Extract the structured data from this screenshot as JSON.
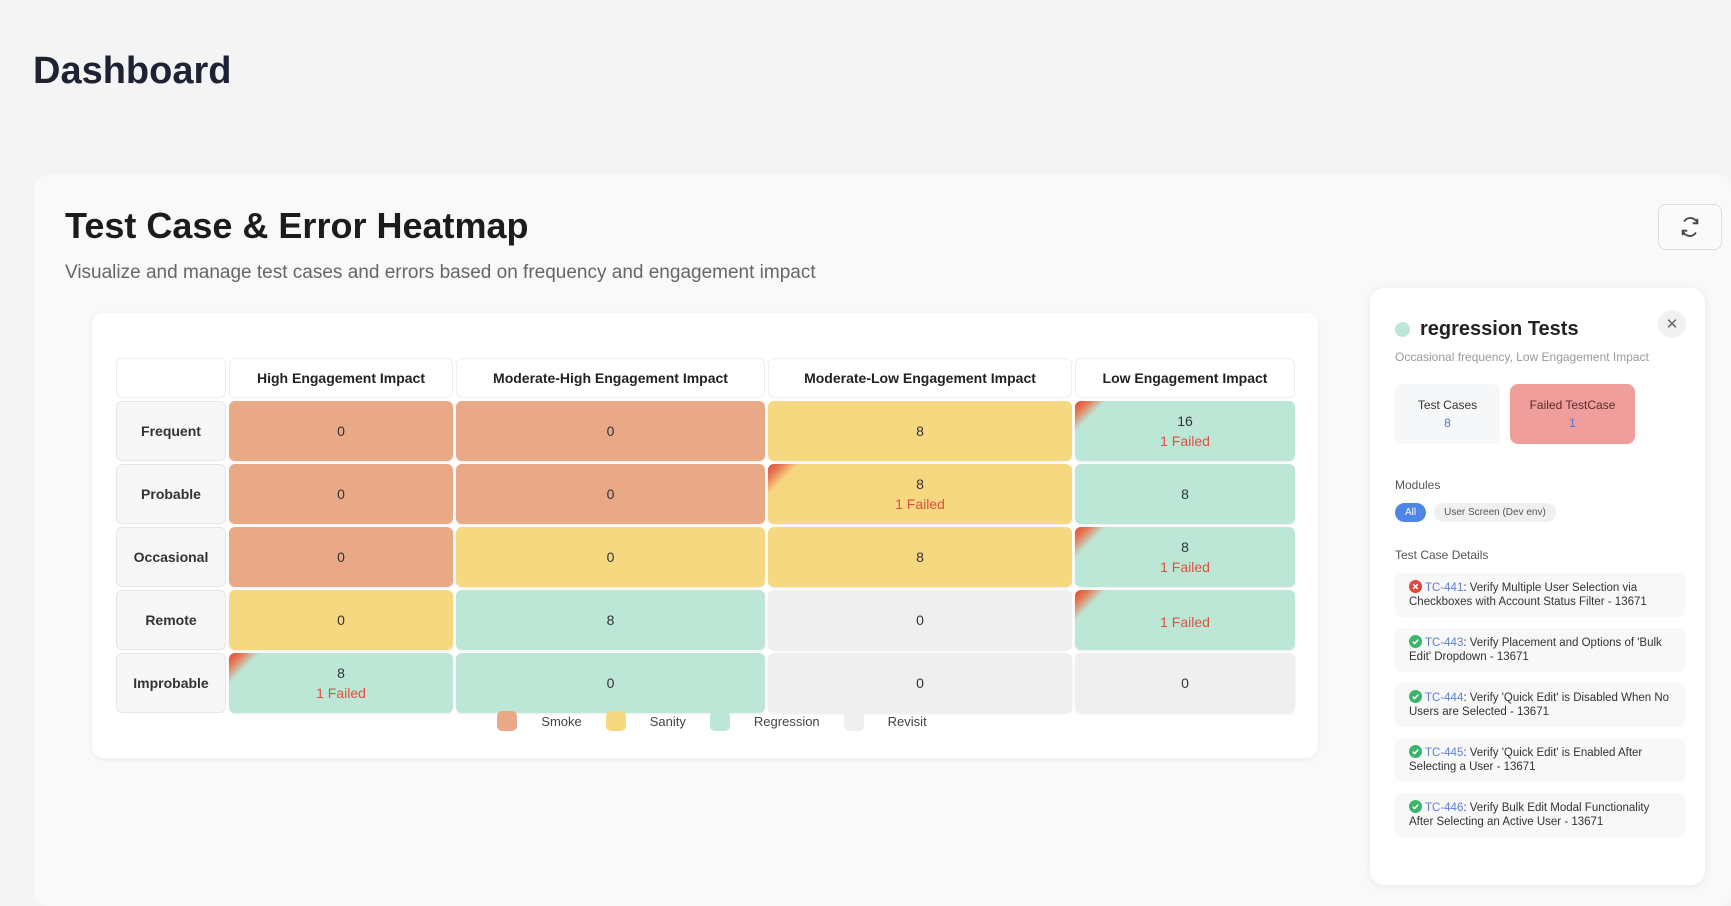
{
  "header": {
    "title": "Dashboard"
  },
  "heatmap": {
    "title": "Test Case & Error Heatmap",
    "subtitle": "Visualize and manage test cases and errors based on frequency and engagement impact",
    "columns": [
      "High Engagement Impact",
      "Moderate-High Engagement Impact",
      "Moderate-Low Engagement Impact",
      "Low Engagement Impact"
    ],
    "rows": [
      {
        "label": "Frequent",
        "cells": [
          {
            "count": 0,
            "color": "#e9a986"
          },
          {
            "count": 0,
            "color": "#e9a986"
          },
          {
            "count": 8,
            "color": "#f6d880"
          },
          {
            "count": 16,
            "failed": "1 Failed",
            "color": "#bce6d6"
          }
        ]
      },
      {
        "label": "Probable",
        "cells": [
          {
            "count": 0,
            "color": "#e9a986"
          },
          {
            "count": 0,
            "color": "#e9a986"
          },
          {
            "count": 8,
            "failed": "1 Failed",
            "color": "#f6d880"
          },
          {
            "count": 8,
            "color": "#bce6d6"
          }
        ]
      },
      {
        "label": "Occasional",
        "cells": [
          {
            "count": 0,
            "color": "#e9a986"
          },
          {
            "count": 0,
            "color": "#f6d880"
          },
          {
            "count": 8,
            "color": "#f6d880"
          },
          {
            "count": 8,
            "failed": "1 Failed",
            "color": "#bce6d6"
          }
        ]
      },
      {
        "label": "Remote",
        "cells": [
          {
            "count": 0,
            "color": "#f6d880"
          },
          {
            "count": 8,
            "color": "#bce6d6"
          },
          {
            "count": 0,
            "color": "#efefef"
          },
          {
            "failed": "1 Failed",
            "color": "#bce6d6"
          }
        ]
      },
      {
        "label": "Improbable",
        "cells": [
          {
            "count": 8,
            "failed": "1 Failed",
            "color": "#bce6d6"
          },
          {
            "count": 0,
            "color": "#bce6d6"
          },
          {
            "count": 0,
            "color": "#efefef"
          },
          {
            "count": 0,
            "color": "#efefef"
          }
        ]
      }
    ],
    "legend": [
      {
        "label": "Smoke",
        "color": "#e9a986"
      },
      {
        "label": "Sanity",
        "color": "#f6d880"
      },
      {
        "label": "Regression",
        "color": "#bce6d6"
      },
      {
        "label": "Revisit",
        "color": "#efefef"
      }
    ]
  },
  "panel": {
    "title": "regression Tests",
    "subtitle": "Occasional frequency, Low Engagement Impact",
    "stats": [
      {
        "label": "Test Cases",
        "value": 8
      },
      {
        "label": "Failed TestCase",
        "value": 1
      }
    ],
    "modules_label": "Modules",
    "modules": [
      "All",
      "User Screen (Dev env)"
    ],
    "details_label": "Test Case Details",
    "items": [
      {
        "id": "TC-441",
        "text": ": Verify Multiple User Selection via Checkboxes with Account Status Filter - 13671",
        "passed": false
      },
      {
        "id": "TC-443",
        "text": ": Verify Placement and Options of 'Bulk Edit' Dropdown - 13671",
        "passed": true
      },
      {
        "id": "TC-444",
        "text": ": Verify 'Quick Edit' is Disabled When No Users are Selected - 13671",
        "passed": true
      },
      {
        "id": "TC-445",
        "text": ": Verify 'Quick Edit' is Enabled After Selecting a User - 13671",
        "passed": true
      },
      {
        "id": "TC-446",
        "text": ": Verify Bulk Edit Modal Functionality After Selecting an Active User - 13671",
        "passed": true
      }
    ]
  }
}
